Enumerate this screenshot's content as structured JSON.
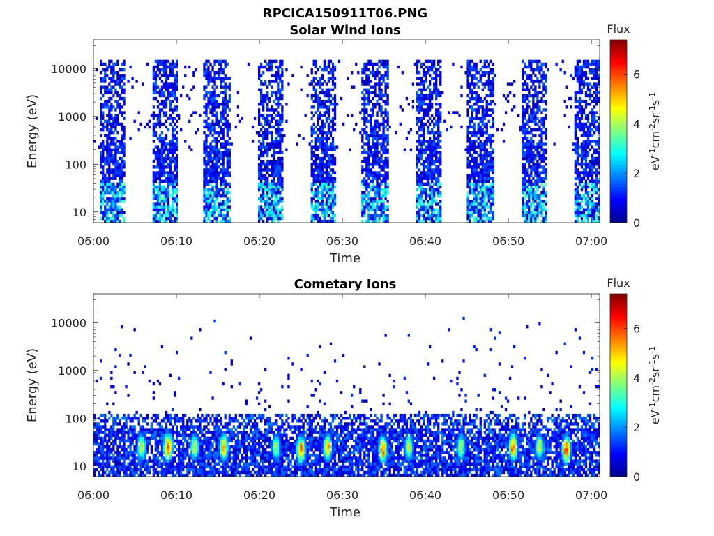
{
  "figure_title": "RPCICA150911T06.PNG",
  "chart_data": [
    {
      "type": "heatmap",
      "title": "Solar Wind Ions",
      "xlabel": "Time",
      "ylabel": "Energy (eV)",
      "x_ticks": [
        "06:00",
        "06:10",
        "06:20",
        "06:30",
        "06:40",
        "06:50",
        "07:00"
      ],
      "x_range": [
        "06:00",
        "07:01"
      ],
      "y_scale": "log",
      "y_ticks": [
        "10",
        "100",
        "1000",
        "10000"
      ],
      "y_range": [
        6,
        40000
      ],
      "colorbar": {
        "title": "Flux",
        "unit": "eV-1cm-2sr-1s-1",
        "ticks": [
          "0",
          "2",
          "4",
          "6"
        ],
        "range": [
          0,
          7.4
        ]
      },
      "colormap": "jet",
      "activity_bursts": [
        {
          "start": "06:00.8",
          "end": "06:03.7"
        },
        {
          "start": "06:07.0",
          "end": "06:10.2"
        },
        {
          "start": "06:13.3",
          "end": "06:16.5"
        },
        {
          "start": "06:19.7",
          "end": "06:22.9"
        },
        {
          "start": "06:26.1",
          "end": "06:29.3"
        },
        {
          "start": "06:32.4",
          "end": "06:35.6"
        },
        {
          "start": "06:38.8",
          "end": "06:42.0"
        },
        {
          "start": "06:45.1",
          "end": "06:48.4"
        },
        {
          "start": "06:51.5",
          "end": "06:54.7"
        },
        {
          "start": "06:57.9",
          "end": "07:00.9"
        }
      ]
    },
    {
      "type": "heatmap",
      "title": "Cometary Ions",
      "xlabel": "Time",
      "ylabel": "Energy (eV)",
      "x_ticks": [
        "06:00",
        "06:10",
        "06:20",
        "06:30",
        "06:40",
        "06:50",
        "07:00"
      ],
      "x_range": [
        "06:00",
        "07:01"
      ],
      "y_scale": "log",
      "y_ticks": [
        "10",
        "100",
        "1000",
        "10000"
      ],
      "y_range": [
        6,
        40000
      ],
      "colorbar": {
        "title": "Flux",
        "unit": "eV-1cm-2sr-1s-1",
        "ticks": [
          "0",
          "2",
          "4",
          "6"
        ],
        "range": [
          0,
          7.4
        ]
      },
      "colormap": "jet",
      "flux_peaks": [
        {
          "time": "06:05.8",
          "energy": 25,
          "flux": 4.6
        },
        {
          "time": "06:09.0",
          "energy": 25,
          "flux": 6.3
        },
        {
          "time": "06:12.2",
          "energy": 25,
          "flux": 4.4
        },
        {
          "time": "06:15.7",
          "energy": 25,
          "flux": 5.6
        },
        {
          "time": "06:22.0",
          "energy": 25,
          "flux": 4.2
        },
        {
          "time": "06:25.0",
          "energy": 22,
          "flux": 6.0
        },
        {
          "time": "06:28.2",
          "energy": 25,
          "flux": 5.4
        },
        {
          "time": "06:34.9",
          "energy": 22,
          "flux": 5.9
        },
        {
          "time": "06:38.0",
          "energy": 25,
          "flux": 4.6
        },
        {
          "time": "06:44.3",
          "energy": 25,
          "flux": 4.4
        },
        {
          "time": "06:50.6",
          "energy": 25,
          "flux": 6.1
        },
        {
          "time": "06:53.8",
          "energy": 25,
          "flux": 4.8
        },
        {
          "time": "06:57.0",
          "energy": 22,
          "flux": 6.3
        }
      ]
    }
  ]
}
